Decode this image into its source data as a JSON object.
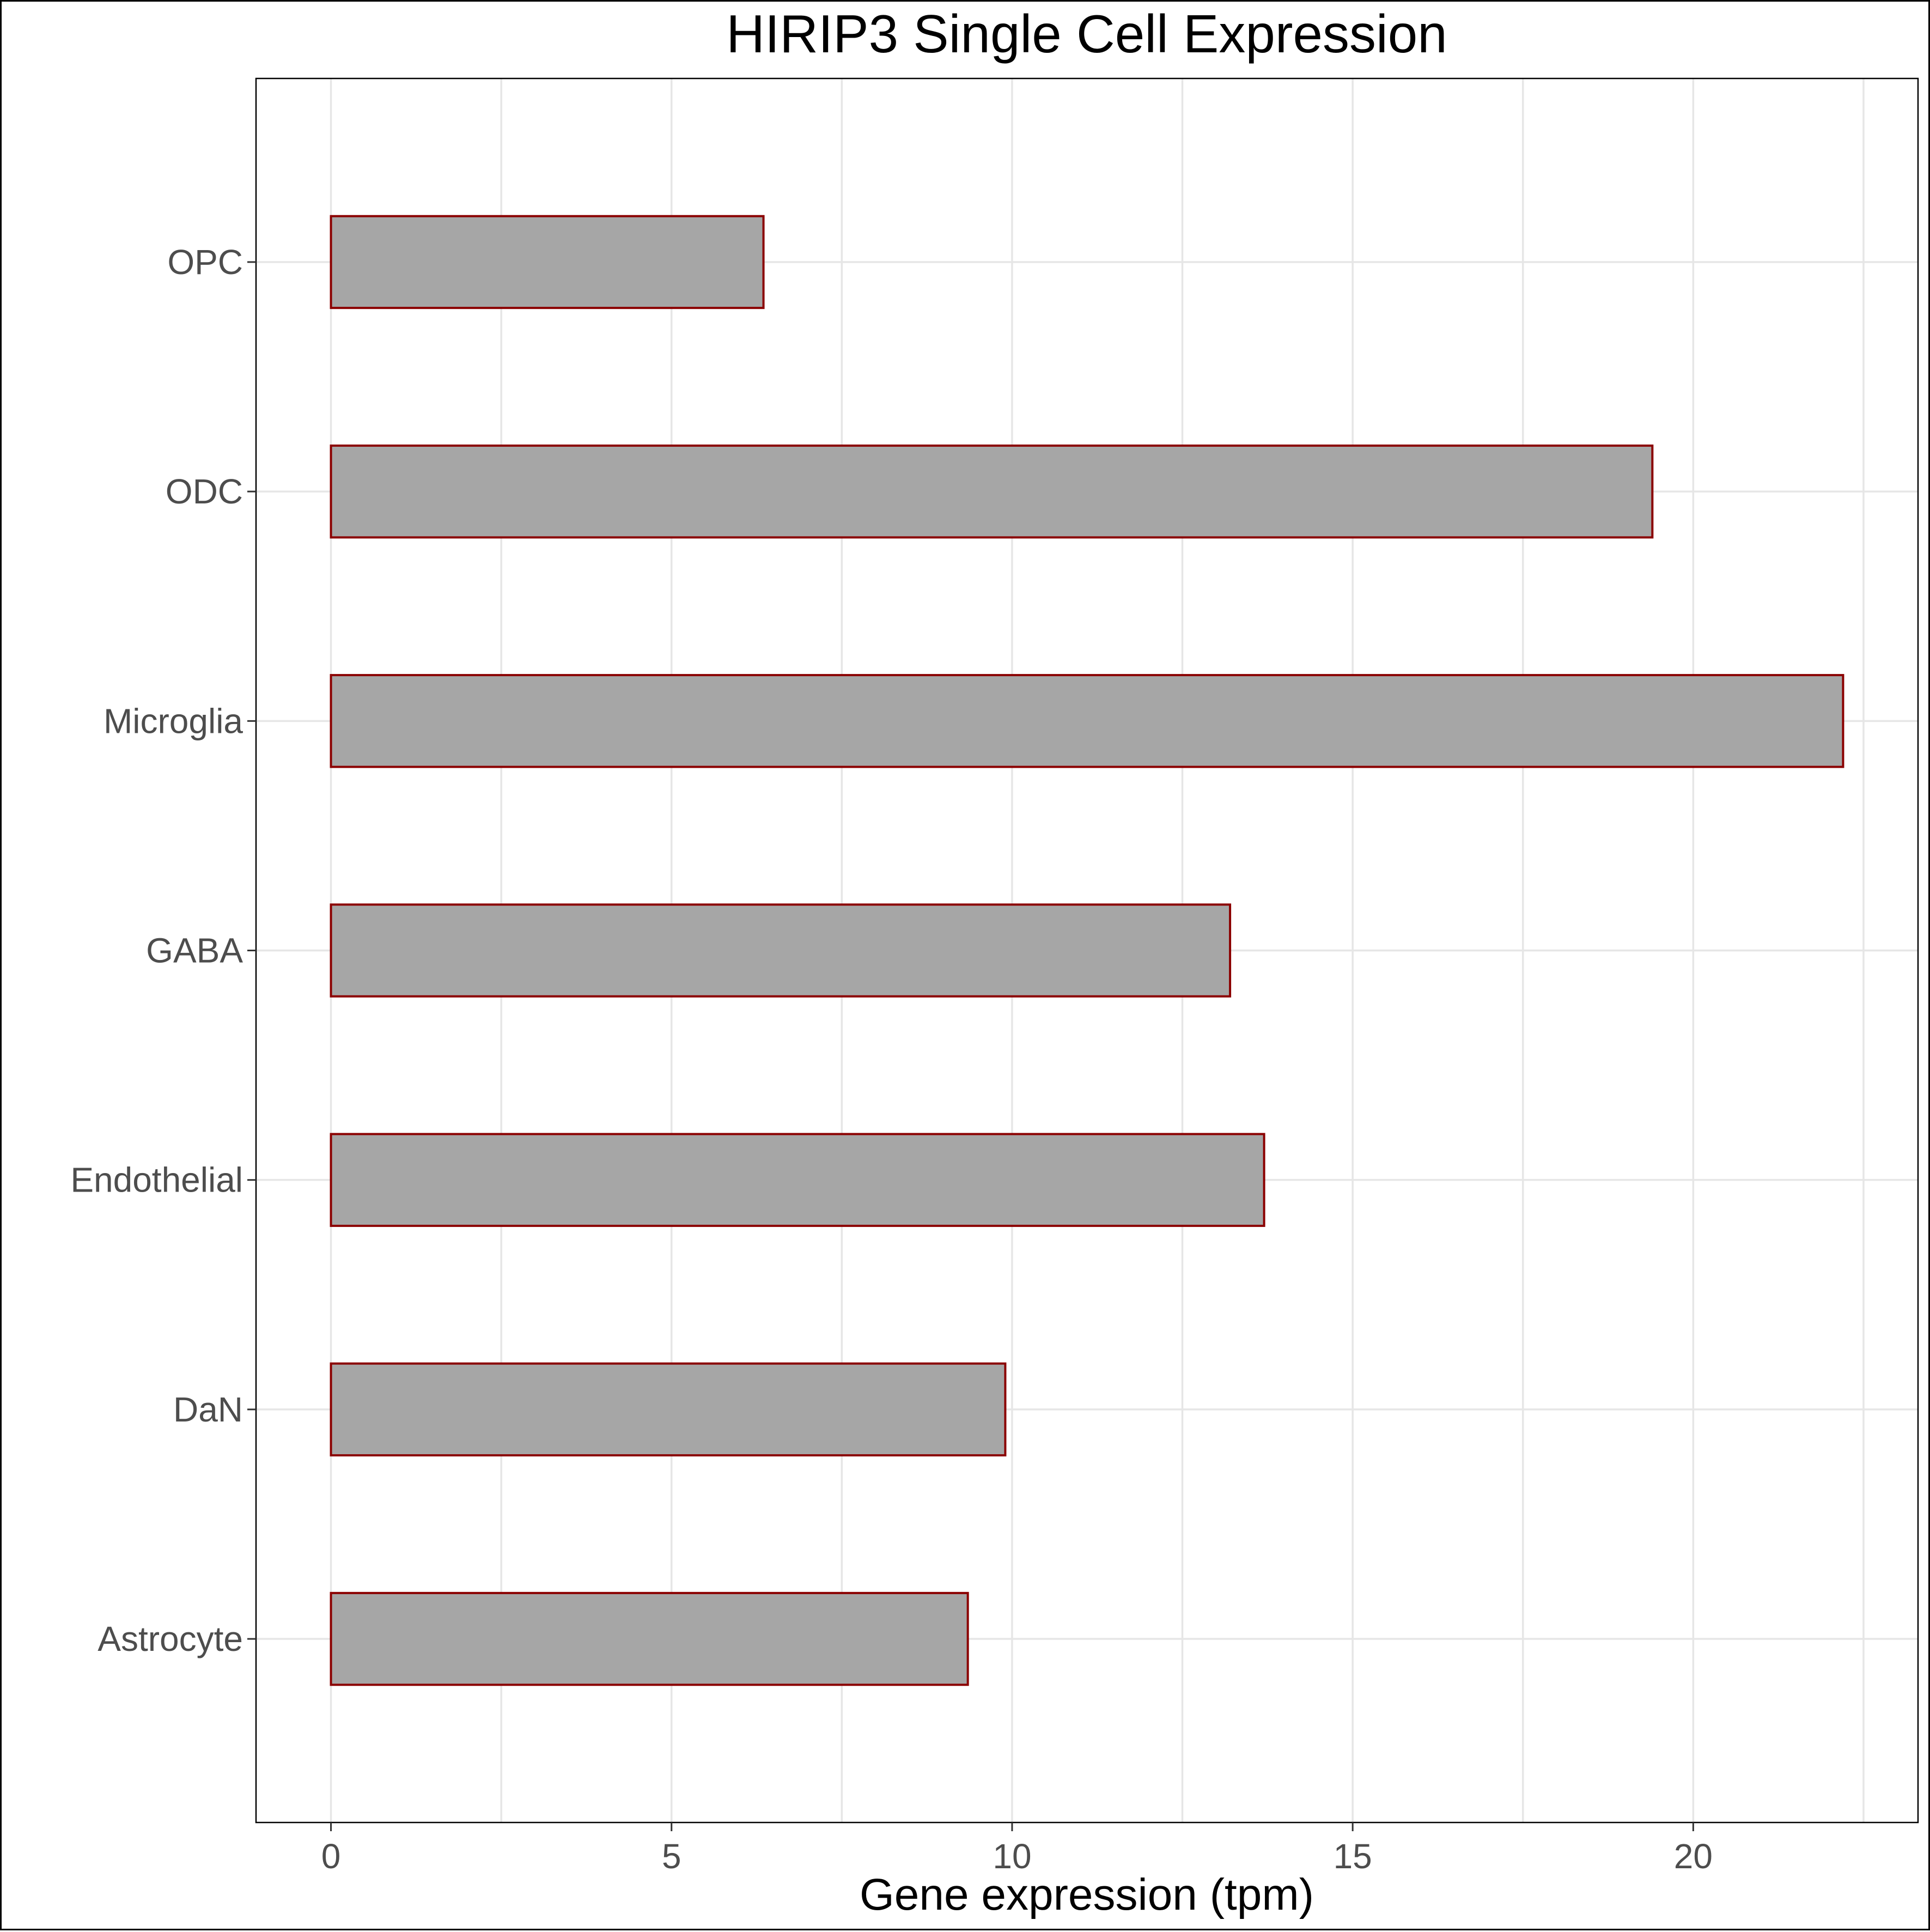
{
  "chart_data": {
    "type": "bar",
    "orientation": "horizontal",
    "title": "HIRIP3 Single Cell Expression",
    "xlabel": "Gene expression (tpm)",
    "ylabel": "",
    "categories": [
      "Astrocyte",
      "DaN",
      "Endothelial",
      "GABA",
      "Microglia",
      "ODC",
      "OPC"
    ],
    "values": [
      9.35,
      9.9,
      13.7,
      13.2,
      22.2,
      19.4,
      6.35
    ],
    "xlim": [
      -1.1,
      23.3
    ],
    "xticks": [
      0,
      5,
      10,
      15,
      20
    ],
    "grid": true,
    "legend": "none",
    "colors": {
      "bar_fill": "#a6a6a6",
      "bar_stroke": "#8b0000",
      "grid": "#e6e6e6",
      "panel_border": "#000000",
      "tick_text": "#4d4d4d"
    }
  }
}
